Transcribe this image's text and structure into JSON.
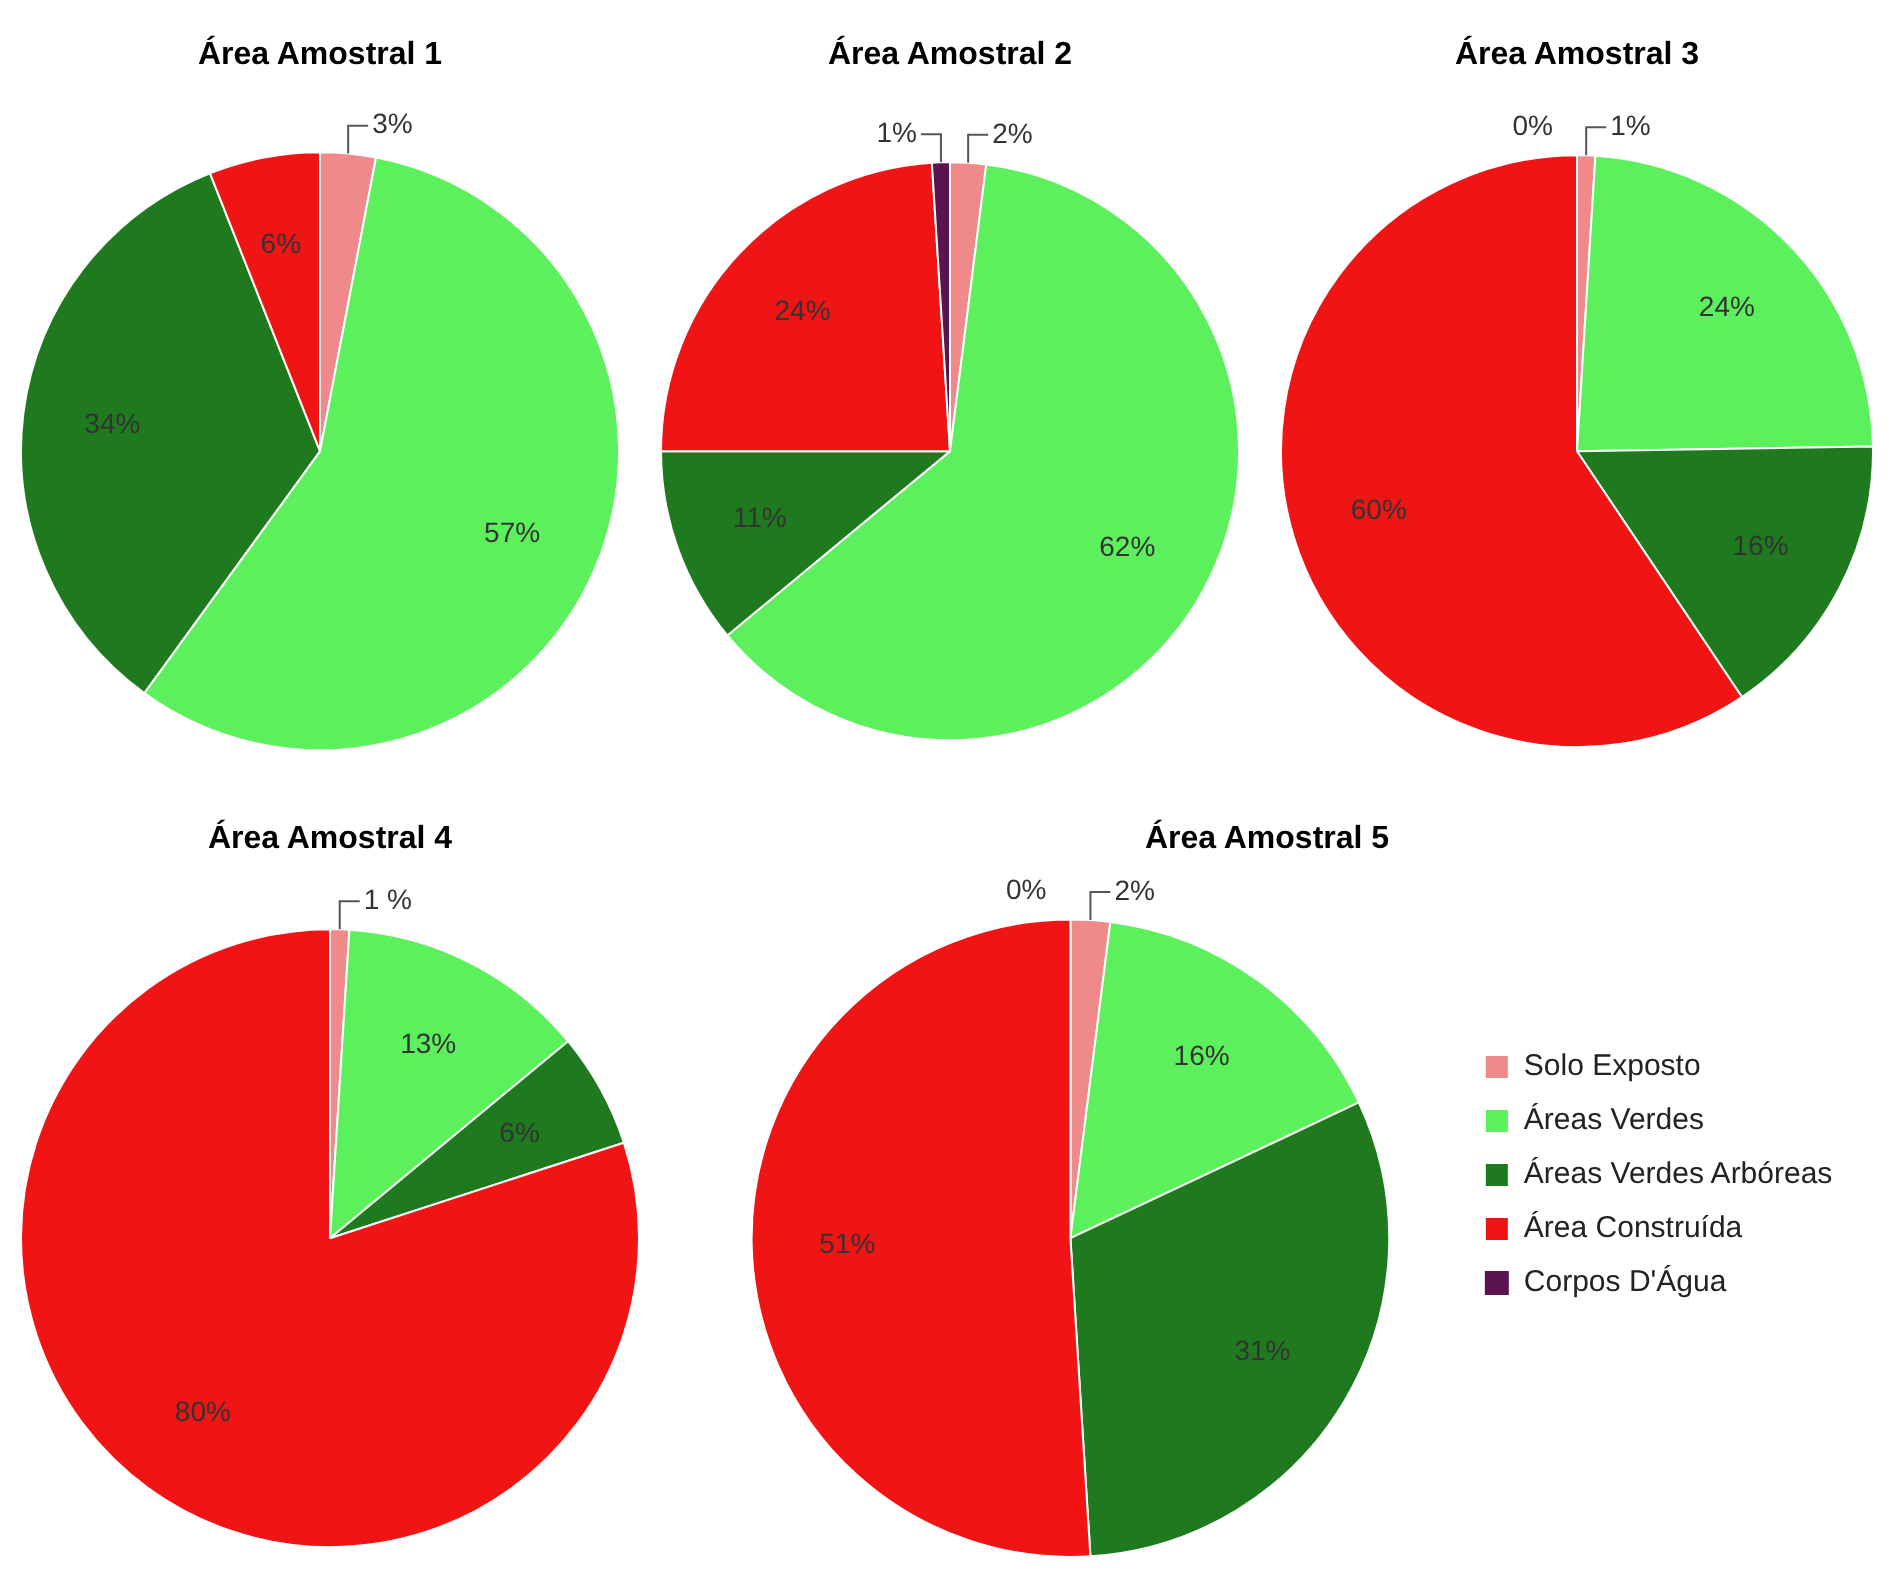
{
  "chart_data": [
    {
      "type": "pie",
      "title": "Área Amostral 1",
      "categories": [
        null,
        null,
        null,
        null
      ],
      "values": [
        3,
        57,
        34,
        6
      ],
      "value_labels": [
        "3%",
        "57%",
        "34%",
        "6%"
      ],
      "colors": [
        "#f08a8a",
        "#5cf05c",
        "#1f7a1f",
        "#f01414"
      ],
      "legend": false
    },
    {
      "type": "pie",
      "title": "Área Amostral 2",
      "categories": [
        null,
        null,
        null,
        null,
        null
      ],
      "values": [
        2,
        62,
        11,
        24,
        1
      ],
      "value_labels": [
        "2%",
        "62%",
        "11%",
        "24%",
        "1%"
      ],
      "colors": [
        "#f08a8a",
        "#5cf05c",
        "#1f7a1f",
        "#f01414",
        "#5a1450"
      ],
      "legend": false
    },
    {
      "type": "pie",
      "title": "Área Amostral 3",
      "categories": [
        null,
        null,
        null,
        null,
        null
      ],
      "values": [
        1,
        24,
        16,
        60,
        0
      ],
      "value_labels": [
        "1%",
        "24%",
        "16%",
        "60%",
        "0%"
      ],
      "colors": [
        "#f08a8a",
        "#5cf05c",
        "#1f7a1f",
        "#f01414",
        "#5a1450"
      ],
      "legend": false
    },
    {
      "type": "pie",
      "title": "Área Amostral 4",
      "categories": [
        null,
        null,
        null,
        null
      ],
      "values": [
        1,
        13,
        6,
        80
      ],
      "value_labels": [
        "1 %",
        "13%",
        "6%",
        "80%"
      ],
      "colors": [
        "#f08a8a",
        "#5cf05c",
        "#1f7a1f",
        "#f01414"
      ],
      "legend": false
    },
    {
      "type": "pie",
      "title": "Área Amostral 5",
      "categories": [
        "Solo Exposto",
        "Áreas Verdes",
        "Áreas Verdes Arbóreas",
        "Área Construída",
        "Corpos D'Água"
      ],
      "values": [
        2,
        16,
        31,
        51,
        0
      ],
      "value_labels": [
        "2%",
        "16%",
        "31%",
        "51%",
        "0%"
      ],
      "colors": [
        "#f08a8a",
        "#5cf05c",
        "#1f7a1f",
        "#f01414",
        "#5a1450"
      ],
      "legend": "right"
    }
  ]
}
